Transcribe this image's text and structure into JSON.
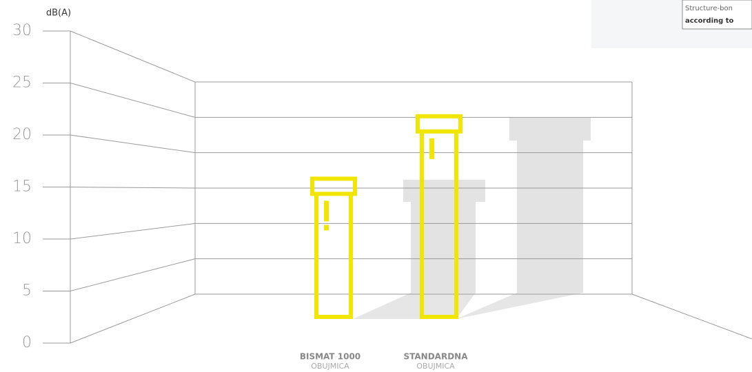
{
  "chart_data": {
    "type": "bar",
    "y_label": "dB(A)",
    "categories": [
      "BISMAT 1000",
      "STANDARDNA"
    ],
    "sublabels": [
      "OBUJMICA",
      "OBUJMICA"
    ],
    "values": [
      16,
      22
    ],
    "color": "#f0e600",
    "ylim": [
      0,
      30
    ],
    "yticks": [
      0,
      5,
      10,
      15,
      20,
      25,
      30
    ],
    "grid": true,
    "annotations": [
      "Structure-bon",
      "according to"
    ]
  }
}
